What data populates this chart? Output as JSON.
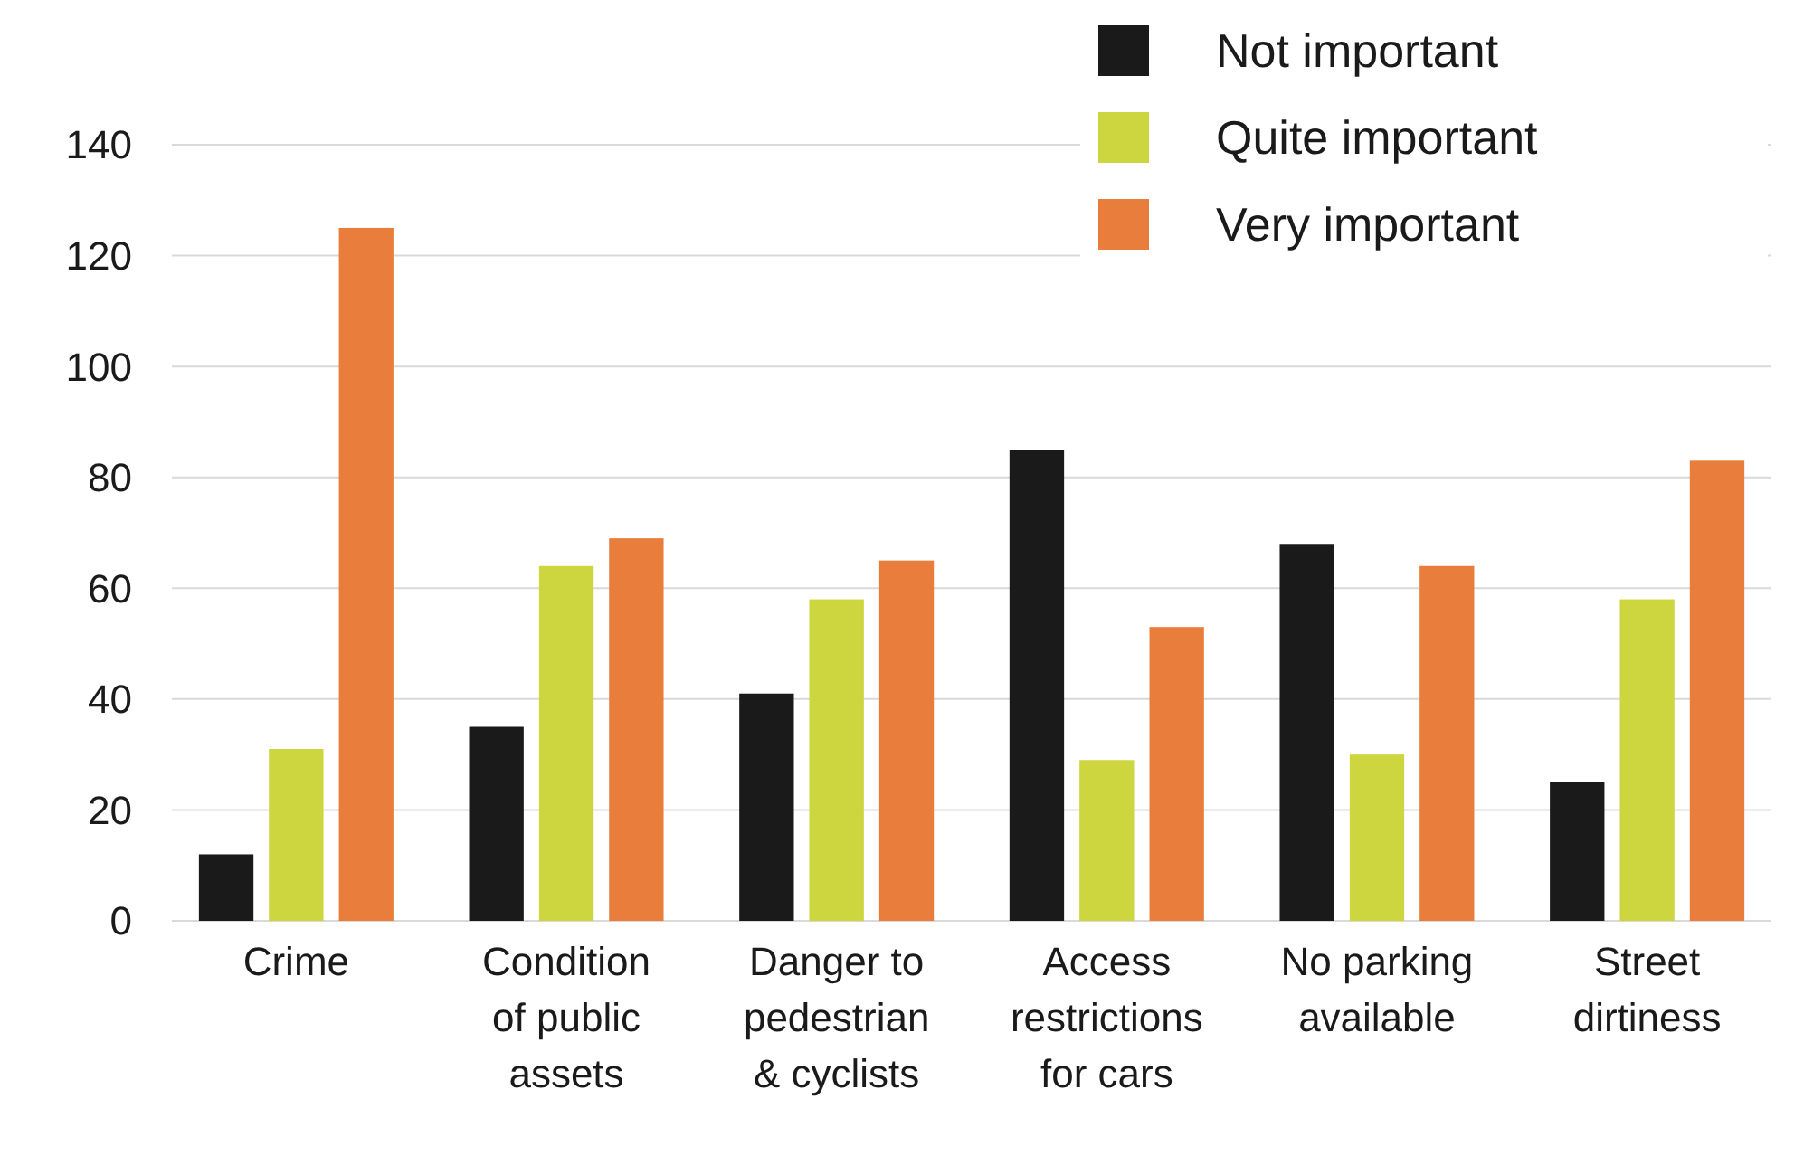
{
  "chart_data": {
    "type": "bar",
    "categories": [
      "Crime",
      "Condition of public assets",
      "Danger to pedestrian & cyclists",
      "Access restrictions for cars",
      "No parking available",
      "Street dirtiness"
    ],
    "series": [
      {
        "name": "Not important",
        "color": "#1a1a1a",
        "values": [
          12,
          35,
          41,
          85,
          68,
          25
        ]
      },
      {
        "name": "Quite important",
        "color": "#cdd63e",
        "values": [
          31,
          64,
          58,
          29,
          30,
          58
        ]
      },
      {
        "name": "Very important",
        "color": "#e97e3c",
        "values": [
          125,
          69,
          65,
          53,
          64,
          83
        ]
      }
    ],
    "ylim": [
      0,
      140
    ],
    "yticks": [
      0,
      20,
      40,
      60,
      80,
      100,
      120,
      140
    ],
    "grid": "y",
    "legend": "top right"
  }
}
